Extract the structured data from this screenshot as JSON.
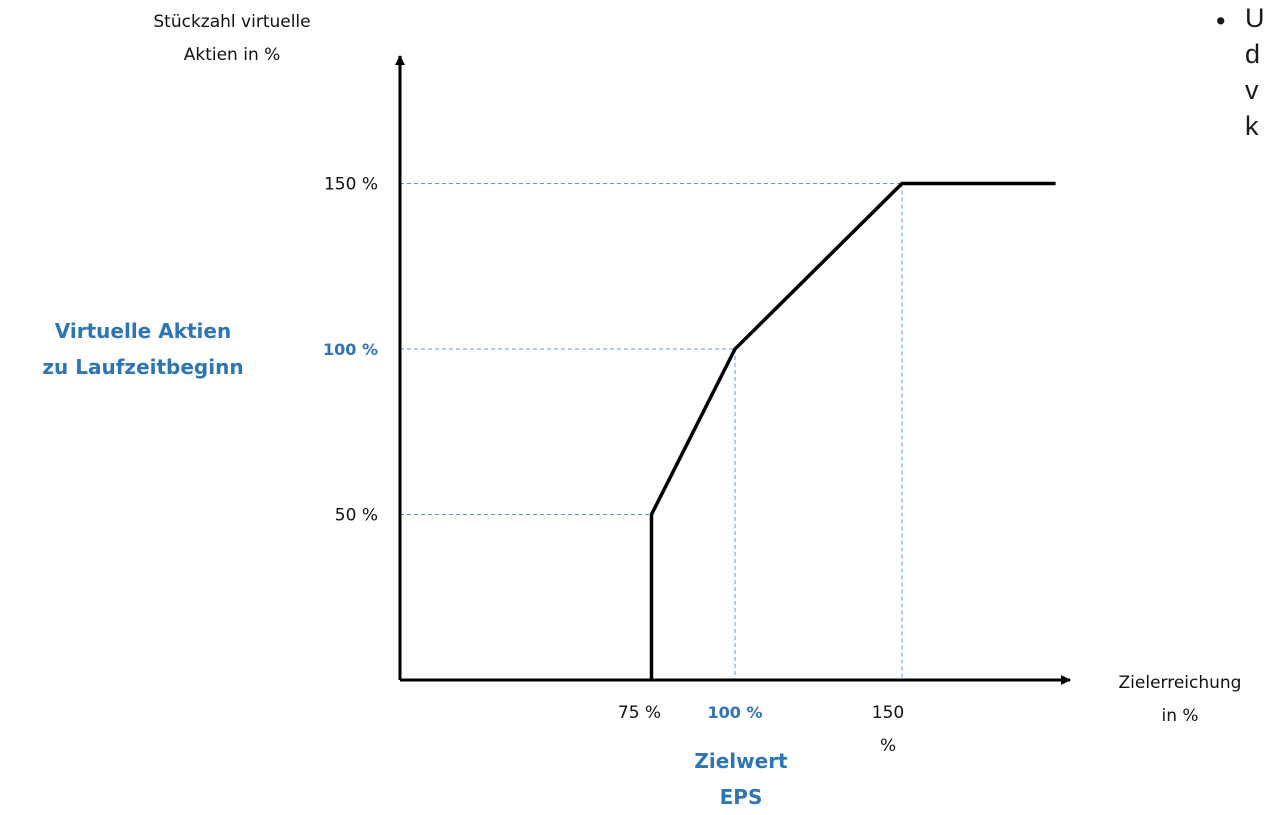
{
  "chart_data": {
    "type": "line",
    "ylabel_lines": [
      "Stückzahl virtuelle",
      "Aktien in %"
    ],
    "xlabel_lines": [
      "Zielerreichung",
      "in %"
    ],
    "x_ticks": [
      {
        "value": 75,
        "label": "75 %",
        "highlight": false
      },
      {
        "value": 100,
        "label": "100 %",
        "highlight": true
      },
      {
        "value": 150,
        "label": [
          "150",
          "%"
        ],
        "highlight": false
      }
    ],
    "y_ticks": [
      {
        "value": 50,
        "label": "50 %",
        "highlight": false
      },
      {
        "value": 100,
        "label": "100 %",
        "highlight": true
      },
      {
        "value": 150,
        "label": "150 %",
        "highlight": false
      }
    ],
    "series": [
      {
        "x": [
          75,
          75,
          100,
          150,
          196
        ],
        "y": [
          0,
          50,
          100,
          150,
          150
        ]
      }
    ],
    "guides": [
      {
        "x": 75,
        "y": 50
      },
      {
        "x": 100,
        "y": 100
      },
      {
        "x": 150,
        "y": 150
      }
    ],
    "xlim": [
      0,
      196
    ],
    "ylim": [
      0,
      150
    ],
    "y_annotation_lines": [
      "Virtuelle Aktien",
      "zu Laufzeitbeginn"
    ],
    "x_annotation_lines": [
      "Zielwert",
      "EPS"
    ],
    "colors": {
      "axis": "#000000",
      "line": "#000000",
      "guide": "#5b9bd5",
      "highlight": "#2e75b6",
      "text": "#111111"
    }
  },
  "side_text": {
    "bullet": "•",
    "lines": [
      "U",
      "d",
      "v",
      "k"
    ]
  }
}
